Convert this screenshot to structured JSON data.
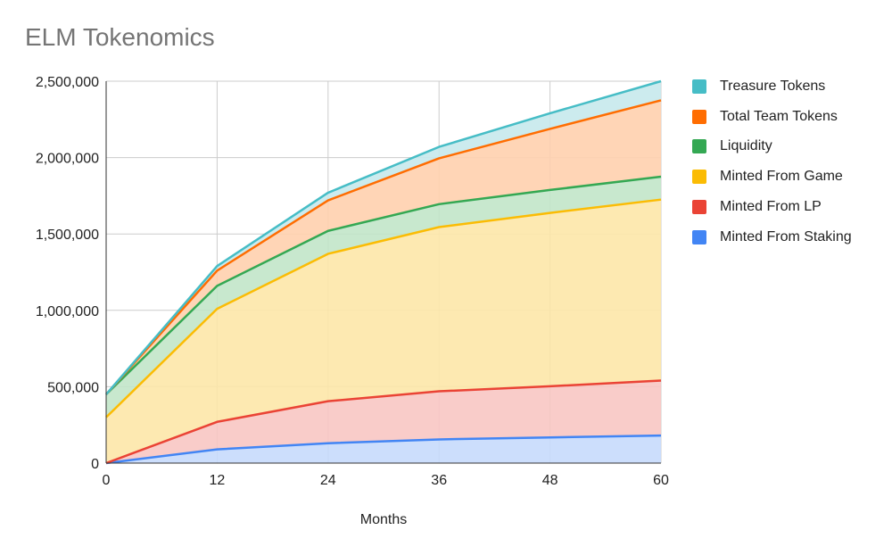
{
  "chart_data": {
    "type": "area",
    "stacked": true,
    "title": "ELM Tokenomics",
    "xlabel": "Months",
    "ylabel": "",
    "x": [
      0,
      12,
      24,
      36,
      48,
      60
    ],
    "xlim": [
      0,
      60
    ],
    "ylim": [
      0,
      2500000
    ],
    "x_ticks": [
      "0",
      "12",
      "24",
      "36",
      "48",
      "60"
    ],
    "y_ticks": [
      "0",
      "500,000",
      "1,000,000",
      "1,500,000",
      "2,000,000",
      "2,500,000"
    ],
    "y_tick_values": [
      0,
      500000,
      1000000,
      1500000,
      2000000,
      2500000
    ],
    "grid": true,
    "legend_position": "right",
    "series": [
      {
        "name": "Minted From Staking",
        "color": "#4285f4",
        "fill": "#c6dafc",
        "values": [
          0,
          90000,
          130000,
          155000,
          168000,
          180000
        ]
      },
      {
        "name": "Minted From LP",
        "color": "#ea4335",
        "fill": "#f8c7c3",
        "values": [
          0,
          180000,
          275000,
          315000,
          335000,
          360000
        ]
      },
      {
        "name": "Minted From Game",
        "color": "#fbbc04",
        "fill": "#fde7a8",
        "values": [
          300000,
          740000,
          965000,
          1075000,
          1135000,
          1185000
        ]
      },
      {
        "name": "Liquidity",
        "color": "#34a853",
        "fill": "#c2e5c9",
        "values": [
          150000,
          150000,
          150000,
          150000,
          150000,
          150000
        ]
      },
      {
        "name": "Total Team Tokens",
        "color": "#ff6d01",
        "fill": "#ffd0ae",
        "values": [
          0,
          100000,
          200000,
          300000,
          400000,
          500000
        ]
      },
      {
        "name": "Treasure Tokens",
        "color": "#46bdc6",
        "fill": "#c6e9ec",
        "values": [
          0,
          30000,
          50000,
          75000,
          102000,
          125000
        ]
      }
    ]
  }
}
